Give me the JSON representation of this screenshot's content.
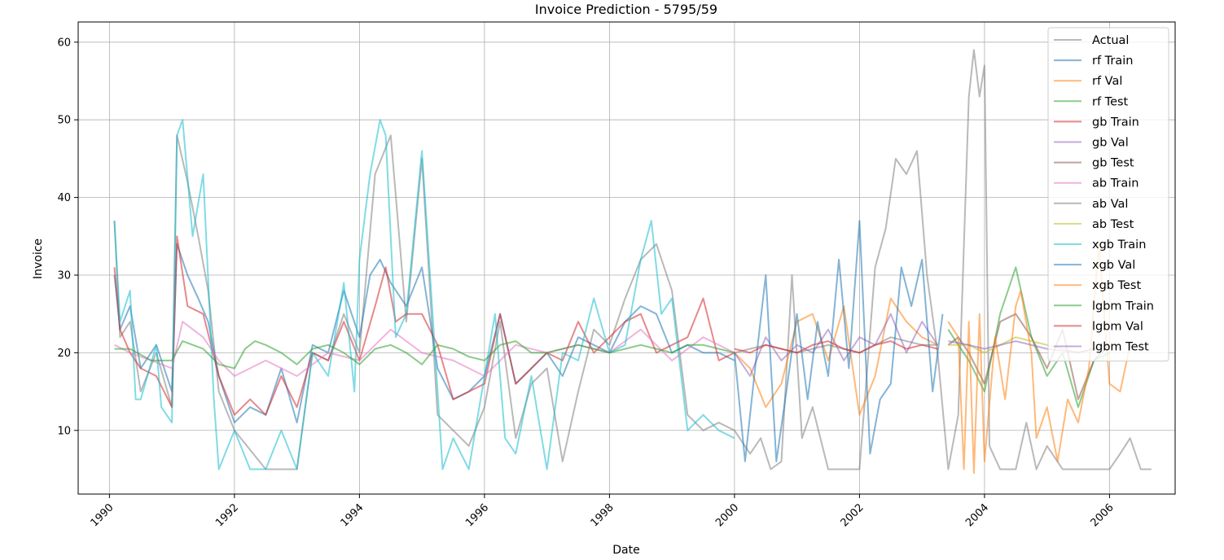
{
  "chart_data": {
    "type": "line",
    "title": "Invoice Prediction - 5795/59",
    "xlabel": "Date",
    "ylabel": "Invoice",
    "xlim": [
      1989.5,
      2007.05
    ],
    "ylim": [
      1.8,
      62.6
    ],
    "x_ticks": [
      1990,
      1992,
      1994,
      1996,
      1998,
      2000,
      2002,
      2004,
      2006
    ],
    "x_tick_labels": [
      "1990",
      "1992",
      "1994",
      "1996",
      "1998",
      "2000",
      "2002",
      "2004",
      "2006"
    ],
    "y_ticks": [
      10,
      20,
      30,
      40,
      50,
      60
    ],
    "y_tick_labels": [
      "10",
      "20",
      "30",
      "40",
      "50",
      "60"
    ],
    "grid": true,
    "legend_position": "top-right",
    "series": [
      {
        "name": "Actual",
        "color": "#7f7f7f",
        "x": [
          1990.08,
          1990.17,
          1990.33,
          1990.5,
          1990.75,
          1991.0,
          1991.08,
          1991.25,
          1991.42,
          1991.58,
          1991.75,
          1992.0,
          1992.5,
          1993.0,
          1993.25,
          1993.5,
          1993.75,
          1994.0,
          1994.25,
          1994.5,
          1994.75,
          1995.0,
          1995.25,
          1995.5,
          1995.75,
          1996.0,
          1996.25,
          1996.5,
          1996.75,
          1997.0,
          1997.25,
          1997.5,
          1997.75,
          1998.0,
          1998.25,
          1998.5,
          1998.75,
          1999.0,
          1999.25,
          1999.5,
          1999.75,
          2000.0,
          2000.25,
          2000.42,
          2000.58,
          2000.75,
          2000.92,
          2001.08,
          2001.25,
          2001.5,
          2001.75,
          2002.0,
          2002.25,
          2002.42,
          2002.58,
          2002.75,
          2002.92,
          2003.08,
          2003.25,
          2003.42,
          2003.58,
          2003.75,
          2003.83,
          2003.92,
          2004.0,
          2004.08,
          2004.25,
          2004.5,
          2004.67,
          2004.83,
          2005.0,
          2005.25,
          2005.5,
          2005.75,
          2006.0,
          2006.17,
          2006.33,
          2006.5,
          2006.67
        ],
        "y": [
          37,
          22,
          24,
          15,
          20,
          13,
          48,
          42,
          35,
          28,
          15,
          10,
          5,
          5,
          20,
          19,
          25,
          20,
          43,
          48,
          24,
          45,
          12,
          10,
          8,
          13,
          24,
          9,
          16,
          18,
          6,
          15,
          23,
          21,
          27,
          32,
          34,
          28,
          12,
          10,
          11,
          10,
          7,
          9,
          5,
          6,
          30,
          9,
          13,
          5,
          5,
          5,
          31,
          36,
          45,
          43,
          46,
          30,
          20,
          5,
          12,
          53,
          59,
          53,
          57,
          8,
          5,
          5,
          11,
          5,
          8,
          5,
          5,
          5,
          5,
          7,
          9,
          5,
          5
        ]
      },
      {
        "name": "rf Train",
        "color": "#1f77b4",
        "x": [
          1990.08,
          1990.17,
          1990.33,
          1990.5,
          1990.75,
          1991.0,
          1991.08,
          1991.25,
          1991.42,
          1991.58,
          1991.75,
          1992.0,
          1992.25,
          1992.5,
          1992.75,
          1993.0,
          1993.25,
          1993.5,
          1993.75,
          1994.0,
          1994.17,
          1994.33,
          1994.5,
          1994.75,
          1995.0,
          1995.25,
          1995.5,
          1995.75,
          1996.0,
          1996.25,
          1996.5,
          1996.75,
          1997.0,
          1997.25,
          1997.5,
          1997.75,
          1998.0,
          1998.25,
          1998.5,
          1998.75,
          1999.0,
          1999.25,
          1999.5,
          1999.75,
          2000.0
        ],
        "y": [
          30,
          23,
          26,
          18,
          21,
          15,
          34,
          30,
          27,
          24,
          17,
          11,
          13,
          12,
          18,
          11,
          21,
          20,
          28,
          22,
          30,
          32,
          29,
          26,
          31,
          18,
          14,
          15,
          17,
          25,
          16,
          18,
          20,
          17,
          22,
          21,
          20,
          24,
          26,
          25,
          20,
          21,
          20,
          20,
          19
        ]
      },
      {
        "name": "rf Val",
        "color": "#ff7f0e",
        "x": [
          2000.0,
          2000.25,
          2000.5,
          2000.75,
          2001.0,
          2001.25,
          2001.5,
          2001.75,
          2002.0,
          2002.25,
          2002.5,
          2002.75,
          2003.0,
          2003.25
        ],
        "y": [
          20,
          18,
          13,
          16,
          24,
          25,
          19,
          26,
          12,
          17,
          27,
          24,
          22,
          21
        ]
      },
      {
        "name": "rf Test",
        "color": "#2ca02c",
        "x": [
          2003.42,
          2003.58,
          2003.75,
          2004.0,
          2004.25,
          2004.5,
          2004.75,
          2005.0,
          2005.25,
          2005.5,
          2005.75,
          2006.0
        ],
        "y": [
          23,
          21,
          19,
          15,
          25,
          31,
          22,
          17,
          20,
          13,
          19,
          20
        ]
      },
      {
        "name": "gb Train",
        "color": "#d62728",
        "x": [
          1990.08,
          1990.17,
          1990.33,
          1990.5,
          1990.75,
          1991.0,
          1991.08,
          1991.25,
          1991.5,
          1991.75,
          1992.0,
          1992.25,
          1992.5,
          1992.75,
          1993.0,
          1993.25,
          1993.5,
          1993.75,
          1994.0,
          1994.25,
          1994.42,
          1994.58,
          1994.75,
          1995.0,
          1995.25,
          1995.5,
          1995.75,
          1996.0,
          1996.25,
          1996.5,
          1996.75,
          1997.0,
          1997.25,
          1997.5,
          1997.75,
          1998.0,
          1998.25,
          1998.5,
          1998.75,
          1999.0,
          1999.25,
          1999.5,
          1999.75,
          2000.0
        ],
        "y": [
          31,
          23,
          20,
          18,
          17,
          13,
          35,
          26,
          25,
          17,
          12,
          14,
          12,
          17,
          13,
          20,
          19,
          24,
          19,
          26,
          31,
          24,
          25,
          25,
          21,
          14,
          15,
          16,
          25,
          16,
          18,
          20,
          19,
          24,
          20,
          22,
          24,
          25,
          20,
          21,
          22,
          27,
          19,
          20
        ]
      },
      {
        "name": "gb Val",
        "color": "#9467bd",
        "x": [
          2000.0,
          2000.25,
          2000.5,
          2000.75,
          2001.0,
          2001.25,
          2001.5,
          2001.75,
          2002.0,
          2002.25,
          2002.5,
          2002.75,
          2003.0,
          2003.25
        ],
        "y": [
          20,
          17,
          22,
          19,
          21,
          20,
          23,
          19,
          22,
          21,
          25,
          20,
          24,
          21
        ]
      },
      {
        "name": "gb Test",
        "color": "#8c564b",
        "x": [
          2003.42,
          2003.58,
          2003.75,
          2004.0,
          2004.25,
          2004.5,
          2004.75,
          2005.0,
          2005.25,
          2005.5,
          2005.75,
          2006.0
        ],
        "y": [
          21,
          22,
          20,
          16,
          24,
          25,
          22,
          18,
          23,
          14,
          19,
          21
        ]
      },
      {
        "name": "ab Train",
        "color": "#e377c2",
        "x": [
          1990.08,
          1990.33,
          1990.67,
          1991.0,
          1991.17,
          1991.5,
          1991.75,
          1992.0,
          1992.5,
          1993.0,
          1993.5,
          1994.0,
          1994.5,
          1995.0,
          1995.5,
          1996.0,
          1996.5,
          1997.0,
          1997.5,
          1998.0,
          1998.5,
          1999.0,
          1999.5,
          2000.0
        ],
        "y": [
          21,
          20,
          19,
          18,
          24,
          22,
          19,
          17,
          19,
          17,
          20,
          19,
          23,
          20,
          19,
          17,
          21,
          20,
          21,
          20,
          23,
          19,
          22,
          20
        ]
      },
      {
        "name": "ab Val",
        "color": "#7f7f7f",
        "x": [
          2000.0,
          2000.5,
          2001.0,
          2001.5,
          2002.0,
          2002.5,
          2003.0,
          2003.25
        ],
        "y": [
          20,
          21,
          20,
          21,
          20,
          22,
          21,
          21
        ]
      },
      {
        "name": "ab Test",
        "color": "#bcbd22",
        "x": [
          2003.42,
          2003.75,
          2004.0,
          2004.5,
          2005.0,
          2005.5,
          2006.0
        ],
        "y": [
          21,
          21,
          20,
          22,
          21,
          20,
          21
        ]
      },
      {
        "name": "xgb Train",
        "color": "#17becf",
        "x": [
          1990.08,
          1990.17,
          1990.33,
          1990.42,
          1990.5,
          1990.75,
          1990.83,
          1991.0,
          1991.08,
          1991.17,
          1991.33,
          1991.5,
          1991.67,
          1991.75,
          1992.0,
          1992.25,
          1992.5,
          1992.75,
          1993.0,
          1993.25,
          1993.5,
          1993.75,
          1993.92,
          1994.0,
          1994.17,
          1994.33,
          1994.42,
          1994.58,
          1994.75,
          1995.0,
          1995.17,
          1995.33,
          1995.5,
          1995.75,
          1996.0,
          1996.17,
          1996.33,
          1996.5,
          1996.75,
          1997.0,
          1997.25,
          1997.5,
          1997.75,
          1998.0,
          1998.25,
          1998.5,
          1998.67,
          1998.83,
          1999.0,
          1999.25,
          1999.5,
          1999.75,
          2000.0
        ],
        "y": [
          37,
          24,
          28,
          14,
          14,
          21,
          13,
          11,
          48,
          50,
          35,
          43,
          14,
          5,
          10,
          5,
          5,
          10,
          5,
          20,
          17,
          29,
          15,
          32,
          43,
          50,
          48,
          22,
          25,
          46,
          25,
          5,
          9,
          5,
          17,
          25,
          9,
          7,
          17,
          5,
          20,
          19,
          27,
          20,
          21,
          32,
          37,
          25,
          27,
          10,
          12,
          10,
          9
        ]
      },
      {
        "name": "xgb Val",
        "color": "#1f77b4",
        "x": [
          2000.0,
          2000.17,
          2000.33,
          2000.5,
          2000.67,
          2000.83,
          2001.0,
          2001.17,
          2001.33,
          2001.5,
          2001.67,
          2001.83,
          2002.0,
          2002.17,
          2002.33,
          2002.5,
          2002.67,
          2002.83,
          2003.0,
          2003.17,
          2003.33
        ],
        "y": [
          20,
          6,
          18,
          30,
          6,
          15,
          25,
          14,
          24,
          17,
          32,
          18,
          37,
          7,
          14,
          16,
          31,
          26,
          32,
          15,
          25
        ]
      },
      {
        "name": "xgb Test",
        "color": "#ff7f0e",
        "x": [
          2003.42,
          2003.58,
          2003.67,
          2003.75,
          2003.83,
          2003.92,
          2004.0,
          2004.17,
          2004.33,
          2004.5,
          2004.58,
          2004.75,
          2004.83,
          2005.0,
          2005.17,
          2005.33,
          2005.5,
          2005.67,
          2005.83,
          2006.0,
          2006.17,
          2006.33
        ],
        "y": [
          24,
          22,
          5,
          24,
          4.5,
          25,
          6,
          22,
          14,
          26,
          28,
          20,
          9,
          13,
          6,
          14,
          11,
          18,
          34,
          16,
          15,
          21
        ]
      },
      {
        "name": "lgbm Train",
        "color": "#2ca02c",
        "x": [
          1990.08,
          1990.33,
          1990.67,
          1991.0,
          1991.17,
          1991.5,
          1991.75,
          1992.0,
          1992.17,
          1992.33,
          1992.5,
          1992.75,
          1993.0,
          1993.25,
          1993.5,
          1993.75,
          1994.0,
          1994.25,
          1994.5,
          1994.75,
          1995.0,
          1995.25,
          1995.5,
          1995.75,
          1996.0,
          1996.25,
          1996.5,
          1996.75,
          1997.0,
          1997.25,
          1997.5,
          1997.75,
          1998.0,
          1998.25,
          1998.5,
          1998.75,
          1999.0,
          1999.25,
          1999.5,
          1999.75,
          2000.0
        ],
        "y": [
          20.5,
          20.5,
          19,
          19,
          21.5,
          20.5,
          18.5,
          18,
          20.5,
          21.5,
          21,
          20,
          18.5,
          20.5,
          21,
          20,
          18.5,
          20.5,
          21,
          20,
          18.5,
          21,
          20.5,
          19.5,
          19,
          21,
          21.5,
          20,
          20,
          20.5,
          21,
          20.5,
          20,
          20.5,
          21,
          20.5,
          20,
          21,
          21,
          20.5,
          20
        ]
      },
      {
        "name": "lgbm Val",
        "color": "#d62728",
        "x": [
          2000.0,
          2000.25,
          2000.5,
          2000.75,
          2001.0,
          2001.25,
          2001.5,
          2001.75,
          2002.0,
          2002.25,
          2002.5,
          2002.75,
          2003.0,
          2003.25
        ],
        "y": [
          20.5,
          20,
          21,
          20.5,
          20,
          21,
          21.5,
          20.5,
          20,
          21,
          21.5,
          20.5,
          21,
          20.5
        ]
      },
      {
        "name": "lgbm Test",
        "color": "#9467bd",
        "x": [
          2003.42,
          2003.75,
          2004.0,
          2004.5,
          2005.0,
          2005.5,
          2006.0
        ],
        "y": [
          21.5,
          21,
          20.5,
          21.5,
          20.5,
          20,
          21
        ]
      }
    ]
  }
}
